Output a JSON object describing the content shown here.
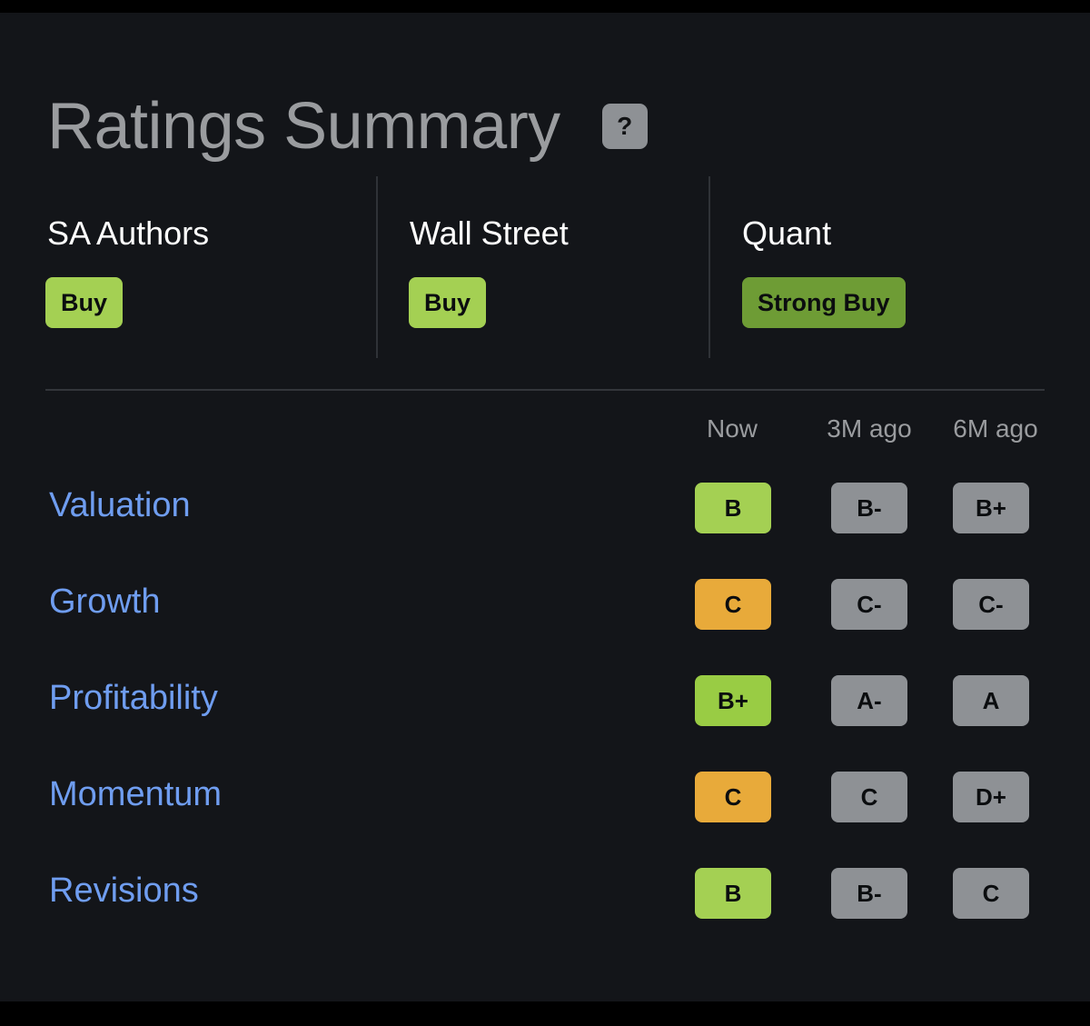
{
  "title": "Ratings Summary",
  "help_label": "?",
  "ratings": [
    {
      "label": "SA Authors",
      "rating": "Buy",
      "color": "#a4d053"
    },
    {
      "label": "Wall Street",
      "rating": "Buy",
      "color": "#a4d053"
    },
    {
      "label": "Quant",
      "rating": "Strong Buy",
      "color": "#6e9c35"
    }
  ],
  "columns": [
    "Now",
    "3M ago",
    "6M ago"
  ],
  "factors": [
    {
      "name": "Valuation",
      "grades": [
        "B",
        "B-",
        "B+"
      ],
      "now_color": "#a4d053"
    },
    {
      "name": "Growth",
      "grades": [
        "C",
        "C-",
        "C-"
      ],
      "now_color": "#e8aa3a"
    },
    {
      "name": "Profitability",
      "grades": [
        "B+",
        "A-",
        "A"
      ],
      "now_color": "#99cc44"
    },
    {
      "name": "Momentum",
      "grades": [
        "C",
        "C",
        "D+"
      ],
      "now_color": "#e8aa3a"
    },
    {
      "name": "Revisions",
      "grades": [
        "B",
        "B-",
        "C"
      ],
      "now_color": "#a4d053"
    }
  ],
  "colors": {
    "past_grade": "#8e9195",
    "factor_link": "#6f9df0",
    "background": "#131519"
  }
}
